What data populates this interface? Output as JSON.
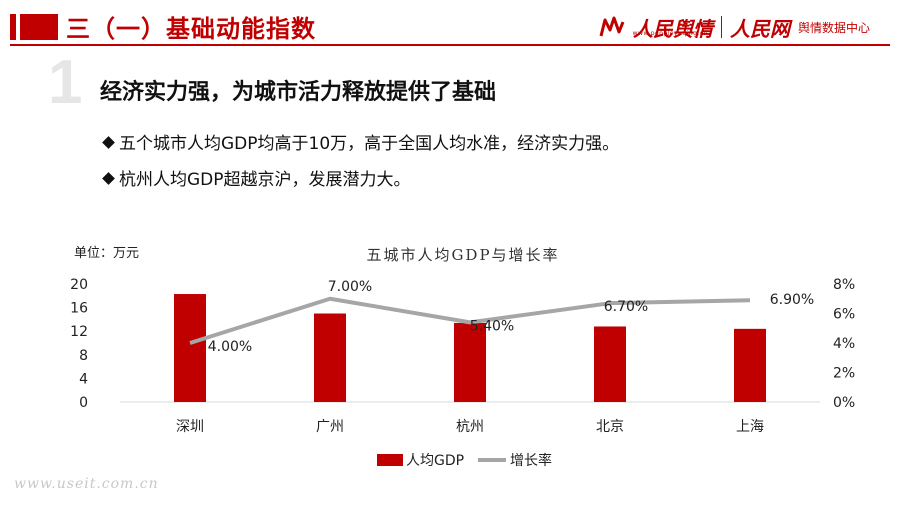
{
  "header": {
    "title": "三（一）基础动能指数",
    "logo_primary": "人民舆情",
    "logo_url_text": "www.peopleyuqing.cn",
    "logo_secondary": "人民网",
    "logo_tertiary": "舆情数据中心",
    "accent_color": "#c00000"
  },
  "section": {
    "number": "1",
    "heading": "经济实力强，为城市活力释放提供了基础"
  },
  "bullets": [
    "五个城市人均GDP均高于10万，高于全国人均水准，经济实力强。",
    "杭州人均GDP超越京沪，发展潜力大。"
  ],
  "watermark": "www.useit.com.cn",
  "chart_data": {
    "type": "bar+line",
    "title": "五城市人均GDP与增长率",
    "unit_label": "单位：万元",
    "categories": [
      "深圳",
      "广州",
      "杭州",
      "北京",
      "上海"
    ],
    "series": [
      {
        "name": "人均GDP",
        "type": "bar",
        "axis": "left",
        "color": "#c00000",
        "values": [
          18.3,
          15.0,
          13.4,
          12.8,
          12.4
        ]
      },
      {
        "name": "增长率",
        "type": "line",
        "axis": "right",
        "color": "#a6a6a6",
        "values": [
          4.0,
          7.0,
          5.4,
          6.7,
          6.9
        ],
        "data_labels": [
          "4.00%",
          "7.00%",
          "5.40%",
          "6.70%",
          "6.90%"
        ]
      }
    ],
    "y_left": {
      "min": 0,
      "max": 20,
      "ticks": [
        "0",
        "4",
        "8",
        "12",
        "16",
        "20"
      ]
    },
    "y_right": {
      "min": 0,
      "max": 8,
      "ticks": [
        "0%",
        "2%",
        "4%",
        "6%",
        "8%"
      ]
    },
    "legend_position": "bottom",
    "grid": false
  }
}
